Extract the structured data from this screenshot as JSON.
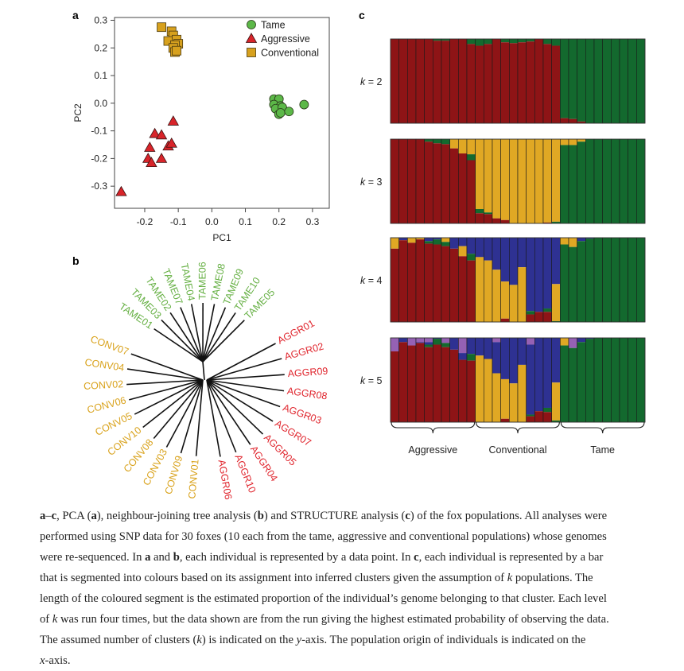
{
  "panel_labels": {
    "a": "a",
    "b": "b",
    "c": "c"
  },
  "colors": {
    "tame": "#5cb848",
    "aggressive": "#d8242a",
    "conventional": "#d7a11e",
    "tame_text": "#66b044",
    "aggressive_text": "#e0262e",
    "conventional_text": "#d9a21b",
    "cluster_red": "#8e1416",
    "cluster_green": "#13692e",
    "cluster_yellow": "#e0a824",
    "cluster_blue": "#2e3192",
    "cluster_purple": "#9561b4"
  },
  "chart_data": [
    {
      "type": "scatter",
      "title": "a",
      "xlabel": "PC1",
      "ylabel": "PC2",
      "xlim": [
        -0.29,
        0.35
      ],
      "ylim": [
        -0.38,
        0.31
      ],
      "xticks": [
        "-0.2",
        "-0.1",
        "0.0",
        "0.1",
        "0.2",
        "0.3"
      ],
      "xtick_values": [
        -0.2,
        -0.1,
        0.0,
        0.1,
        0.2,
        0.3
      ],
      "yticks": [
        "0.3",
        "0.2",
        "0.1",
        "0.0",
        "-0.1",
        "-0.2",
        "-0.3"
      ],
      "ytick_values": [
        0.3,
        0.2,
        0.1,
        0.0,
        -0.1,
        -0.2,
        -0.3
      ],
      "legend_position": "top-right",
      "grid": false,
      "series": [
        {
          "name": "Tame",
          "marker": "circle",
          "points": [
            [
              0.185,
              0.015
            ],
            [
              0.2,
              0.015
            ],
            [
              0.185,
              -0.005
            ],
            [
              0.205,
              -0.01
            ],
            [
              0.19,
              -0.02
            ],
            [
              0.21,
              -0.015
            ],
            [
              0.2,
              -0.04
            ],
            [
              0.205,
              -0.035
            ],
            [
              0.23,
              -0.03
            ],
            [
              0.275,
              -0.005
            ]
          ]
        },
        {
          "name": "Aggressive",
          "marker": "triangle",
          "points": [
            [
              -0.27,
              -0.32
            ],
            [
              -0.115,
              -0.065
            ],
            [
              -0.17,
              -0.11
            ],
            [
              -0.15,
              -0.115
            ],
            [
              -0.185,
              -0.16
            ],
            [
              -0.13,
              -0.155
            ],
            [
              -0.12,
              -0.145
            ],
            [
              -0.19,
              -0.2
            ],
            [
              -0.18,
              -0.215
            ],
            [
              -0.15,
              -0.2
            ]
          ]
        },
        {
          "name": "Conventional",
          "marker": "square",
          "points": [
            [
              -0.15,
              0.275
            ],
            [
              -0.12,
              0.26
            ],
            [
              -0.115,
              0.245
            ],
            [
              -0.13,
              0.225
            ],
            [
              -0.105,
              0.23
            ],
            [
              -0.1,
              0.215
            ],
            [
              -0.11,
              0.21
            ],
            [
              -0.115,
              0.2
            ],
            [
              -0.11,
              0.185
            ],
            [
              -0.105,
              0.19
            ]
          ]
        }
      ]
    },
    {
      "type": "tree",
      "title": "b",
      "groups": [
        {
          "name": "tame",
          "leaves": [
            "TAME01",
            "TAME03",
            "TAME02",
            "TAME07",
            "TAME04",
            "TAME06",
            "TAME08",
            "TAME09",
            "TAME10",
            "TAME05"
          ]
        },
        {
          "name": "aggressive",
          "leaves": [
            "AGGR01",
            "AGGR02",
            "AGGR09",
            "AGGR08",
            "AGGR03",
            "AGGR07",
            "AGGR05",
            "AGGR04",
            "AGGR10",
            "AGGR06"
          ]
        },
        {
          "name": "conventional",
          "leaves": [
            "CONV01",
            "CONV09",
            "CONV03",
            "CONV08",
            "CONV10",
            "CONV05",
            "CONV06",
            "CONV02",
            "CONV04",
            "CONV07"
          ]
        }
      ]
    },
    {
      "type": "stacked_bar",
      "title": "c",
      "cluster_order_top_to_bottom": [
        "purple",
        "blue",
        "yellow",
        "green",
        "red"
      ],
      "value_fields": [
        "green",
        "yellow",
        "blue",
        "purple"
      ],
      "note_red": "remainder",
      "group_labels": [
        "Aggressive",
        "Conventional",
        "Tame"
      ],
      "k_label_prefix": "k",
      "k_label_suffix": " = ",
      "panels": [
        {
          "k": "2",
          "bars": [
            [
              0,
              0,
              0,
              0
            ],
            [
              0,
              0,
              0,
              0
            ],
            [
              0,
              0,
              0,
              0
            ],
            [
              0,
              0,
              0,
              0
            ],
            [
              0,
              0,
              0,
              0
            ],
            [
              0.02,
              0,
              0,
              0
            ],
            [
              0.02,
              0,
              0,
              0
            ],
            [
              0,
              0,
              0,
              0
            ],
            [
              0,
              0,
              0,
              0
            ],
            [
              0.06,
              0,
              0,
              0
            ],
            [
              0.08,
              0,
              0,
              0
            ],
            [
              0.06,
              0,
              0,
              0
            ],
            [
              0,
              0,
              0,
              0
            ],
            [
              0.04,
              0,
              0,
              0
            ],
            [
              0.05,
              0,
              0,
              0
            ],
            [
              0.04,
              0,
              0,
              0
            ],
            [
              0.03,
              0,
              0,
              0
            ],
            [
              0,
              0,
              0,
              0
            ],
            [
              0.06,
              0,
              0,
              0
            ],
            [
              0.08,
              0,
              0,
              0
            ],
            [
              0.94,
              0,
              0,
              0
            ],
            [
              0.95,
              0,
              0,
              0
            ],
            [
              0.98,
              0,
              0,
              0
            ],
            [
              1,
              0,
              0,
              0
            ],
            [
              1,
              0,
              0,
              0
            ],
            [
              1,
              0,
              0,
              0
            ],
            [
              1,
              0,
              0,
              0
            ],
            [
              1,
              0,
              0,
              0
            ],
            [
              1,
              0,
              0,
              0
            ],
            [
              1,
              0,
              0,
              0
            ]
          ]
        },
        {
          "k": "3",
          "bars": [
            [
              0,
              0,
              0,
              0
            ],
            [
              0,
              0,
              0,
              0
            ],
            [
              0,
              0,
              0,
              0
            ],
            [
              0,
              0,
              0,
              0
            ],
            [
              0.03,
              0,
              0,
              0
            ],
            [
              0.05,
              0,
              0,
              0
            ],
            [
              0.06,
              0,
              0,
              0
            ],
            [
              0,
              0.11,
              0,
              0
            ],
            [
              0,
              0.17,
              0,
              0
            ],
            [
              0.07,
              0.18,
              0,
              0
            ],
            [
              0.05,
              0.83,
              0,
              0
            ],
            [
              0.02,
              0.87,
              0,
              0
            ],
            [
              0,
              0.94,
              0,
              0
            ],
            [
              0,
              0.96,
              0,
              0
            ],
            [
              0,
              1,
              0,
              0
            ],
            [
              0,
              1,
              0,
              0
            ],
            [
              0,
              1,
              0,
              0
            ],
            [
              0,
              1,
              0,
              0
            ],
            [
              0,
              0.99,
              0,
              0
            ],
            [
              0.02,
              0.98,
              0,
              0
            ],
            [
              0.93,
              0.07,
              0,
              0
            ],
            [
              0.93,
              0.07,
              0,
              0
            ],
            [
              0.97,
              0.03,
              0,
              0
            ],
            [
              1,
              0,
              0,
              0
            ],
            [
              1,
              0,
              0,
              0
            ],
            [
              1,
              0,
              0,
              0
            ],
            [
              1,
              0,
              0,
              0
            ],
            [
              1,
              0,
              0,
              0
            ],
            [
              1,
              0,
              0,
              0
            ],
            [
              1,
              0,
              0,
              0
            ]
          ]
        },
        {
          "k": "4",
          "bars": [
            [
              0,
              0.13,
              0,
              0
            ],
            [
              0,
              0,
              0.03,
              0
            ],
            [
              0,
              0.06,
              0,
              0
            ],
            [
              0,
              0.02,
              0,
              0
            ],
            [
              0.03,
              0,
              0.04,
              0
            ],
            [
              0.06,
              0,
              0.02,
              0
            ],
            [
              0.05,
              0.05,
              0,
              0
            ],
            [
              0,
              0,
              0.13,
              0
            ],
            [
              0,
              0.12,
              0.1,
              0
            ],
            [
              0.08,
              0,
              0.19,
              0
            ],
            [
              0,
              0.77,
              0.23,
              0
            ],
            [
              0,
              0.73,
              0.27,
              0
            ],
            [
              0,
              0.62,
              0.38,
              0
            ],
            [
              0,
              0.44,
              0.52,
              0
            ],
            [
              0,
              0.44,
              0.56,
              0
            ],
            [
              0,
              0.65,
              0.35,
              0
            ],
            [
              0.04,
              0,
              0.87,
              0
            ],
            [
              0,
              0,
              0.88,
              0
            ],
            [
              0.04,
              0,
              0.84,
              0
            ],
            [
              0.01,
              0.44,
              0.55,
              0
            ],
            [
              0.92,
              0.08,
              0,
              0
            ],
            [
              0.89,
              0.11,
              0,
              0
            ],
            [
              0.96,
              0,
              0.04,
              0
            ],
            [
              0.99,
              0,
              0.01,
              0
            ],
            [
              1,
              0,
              0,
              0
            ],
            [
              1,
              0,
              0,
              0
            ],
            [
              1,
              0,
              0,
              0
            ],
            [
              1,
              0,
              0,
              0
            ],
            [
              1,
              0,
              0,
              0
            ],
            [
              1,
              0,
              0,
              0
            ]
          ]
        },
        {
          "k": "5",
          "bars": [
            [
              0,
              0,
              0,
              0.16
            ],
            [
              0,
              0,
              0.05,
              0
            ],
            [
              0,
              0,
              0,
              0.09
            ],
            [
              0,
              0,
              0.01,
              0.05
            ],
            [
              0.03,
              0,
              0.03,
              0.05
            ],
            [
              0.07,
              0,
              0.01,
              0
            ],
            [
              0.05,
              0,
              0,
              0.06
            ],
            [
              0,
              0,
              0.14,
              0
            ],
            [
              0,
              0,
              0.08,
              0.18
            ],
            [
              0.08,
              0,
              0.19,
              0
            ],
            [
              0,
              0.79,
              0.21,
              0
            ],
            [
              0,
              0.75,
              0.25,
              0
            ],
            [
              0,
              0.58,
              0.37,
              0.05
            ],
            [
              0,
              0.47,
              0.49,
              0
            ],
            [
              0,
              0.46,
              0.54,
              0
            ],
            [
              0,
              0.68,
              0.32,
              0
            ],
            [
              0.02,
              0,
              0.83,
              0.08
            ],
            [
              0,
              0,
              0.87,
              0
            ],
            [
              0.05,
              0,
              0.83,
              0
            ],
            [
              0.02,
              0.45,
              0.53,
              0
            ],
            [
              0.91,
              0.09,
              0,
              0
            ],
            [
              0.88,
              0,
              0,
              0.12
            ],
            [
              0.95,
              0,
              0.05,
              0
            ],
            [
              0.99,
              0,
              0.01,
              0
            ],
            [
              1,
              0,
              0,
              0
            ],
            [
              1,
              0,
              0,
              0
            ],
            [
              1,
              0,
              0,
              0
            ],
            [
              1,
              0,
              0,
              0
            ],
            [
              1,
              0,
              0,
              0
            ],
            [
              1,
              0,
              0,
              0
            ]
          ]
        }
      ]
    }
  ],
  "caption": [
    [
      {
        "t": "a",
        "b": 1
      },
      {
        "t": "–"
      },
      {
        "t": "c",
        "b": 1
      },
      {
        "t": ", PCA ("
      },
      {
        "t": "a",
        "b": 1
      },
      {
        "t": "), neighbour-joining tree analysis ("
      },
      {
        "t": "b",
        "b": 1
      },
      {
        "t": ") and STRUCTURE analysis ("
      },
      {
        "t": "c",
        "b": 1
      },
      {
        "t": ") of the fox populations. All analyses were"
      }
    ],
    [
      {
        "t": "performed using SNP data for 30 foxes (10 each from the tame, aggressive and conventional populations) whose genomes"
      }
    ],
    [
      {
        "t": "were re-sequenced. In "
      },
      {
        "t": "a",
        "b": 1
      },
      {
        "t": " and "
      },
      {
        "t": "b",
        "b": 1
      },
      {
        "t": ", each individual is represented by a data point. In "
      },
      {
        "t": "c",
        "b": 1
      },
      {
        "t": ", each individual is represented by a bar"
      }
    ],
    [
      {
        "t": "that is segmented into colours based on its assignment into inferred clusters given the assumption of "
      },
      {
        "t": "k",
        "i": 1
      },
      {
        "t": " populations. The"
      }
    ],
    [
      {
        "t": "length of the coloured segment is the estimated proportion of the individual’s genome belonging to that cluster. Each level"
      }
    ],
    [
      {
        "t": "of "
      },
      {
        "t": "k",
        "i": 1
      },
      {
        "t": " was run four times, but the data shown are from the run giving the highest estimated probability of observing the data."
      }
    ],
    [
      {
        "t": "The assumed number of clusters ("
      },
      {
        "t": "k",
        "i": 1
      },
      {
        "t": ") is indicated on the "
      },
      {
        "t": "y",
        "i": 1
      },
      {
        "t": "-axis. The population origin of individuals is indicated on the"
      }
    ],
    [
      {
        "t": "x",
        "i": 1
      },
      {
        "t": "-axis."
      }
    ]
  ]
}
